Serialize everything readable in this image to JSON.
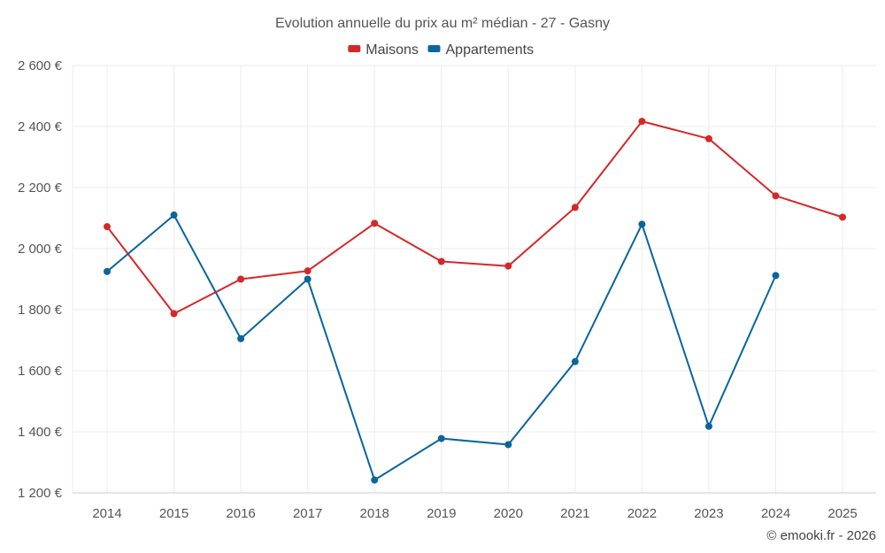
{
  "chart_data": {
    "type": "line",
    "title": "Evolution annuelle du prix au m² médian - 27 - Gasny",
    "x": [
      "2014",
      "2015",
      "2016",
      "2017",
      "2018",
      "2019",
      "2020",
      "2021",
      "2022",
      "2023",
      "2024",
      "2025"
    ],
    "series": [
      {
        "name": "Maisons",
        "color": "#d62728",
        "values": [
          2072,
          1787,
          1900,
          1927,
          2083,
          1958,
          1943,
          2135,
          2417,
          2360,
          2173,
          2103
        ]
      },
      {
        "name": "Appartements",
        "color": "#0a659c",
        "values": [
          1925,
          2110,
          1705,
          1900,
          1242,
          1378,
          1358,
          1630,
          2080,
          1418,
          1912,
          null
        ]
      }
    ],
    "ylim": [
      1200,
      2600
    ],
    "yticks": [
      1200,
      1400,
      1600,
      1800,
      2000,
      2200,
      2400,
      2600
    ],
    "ytick_labels": [
      "1 200 €",
      "1 400 €",
      "1 600 €",
      "1 800 €",
      "2 000 €",
      "2 200 €",
      "2 400 €",
      "2 600 €"
    ],
    "xlabel": "",
    "ylabel": "",
    "grid": true,
    "legend_position": "top-center"
  },
  "credit": "© emooki.fr - 2026"
}
